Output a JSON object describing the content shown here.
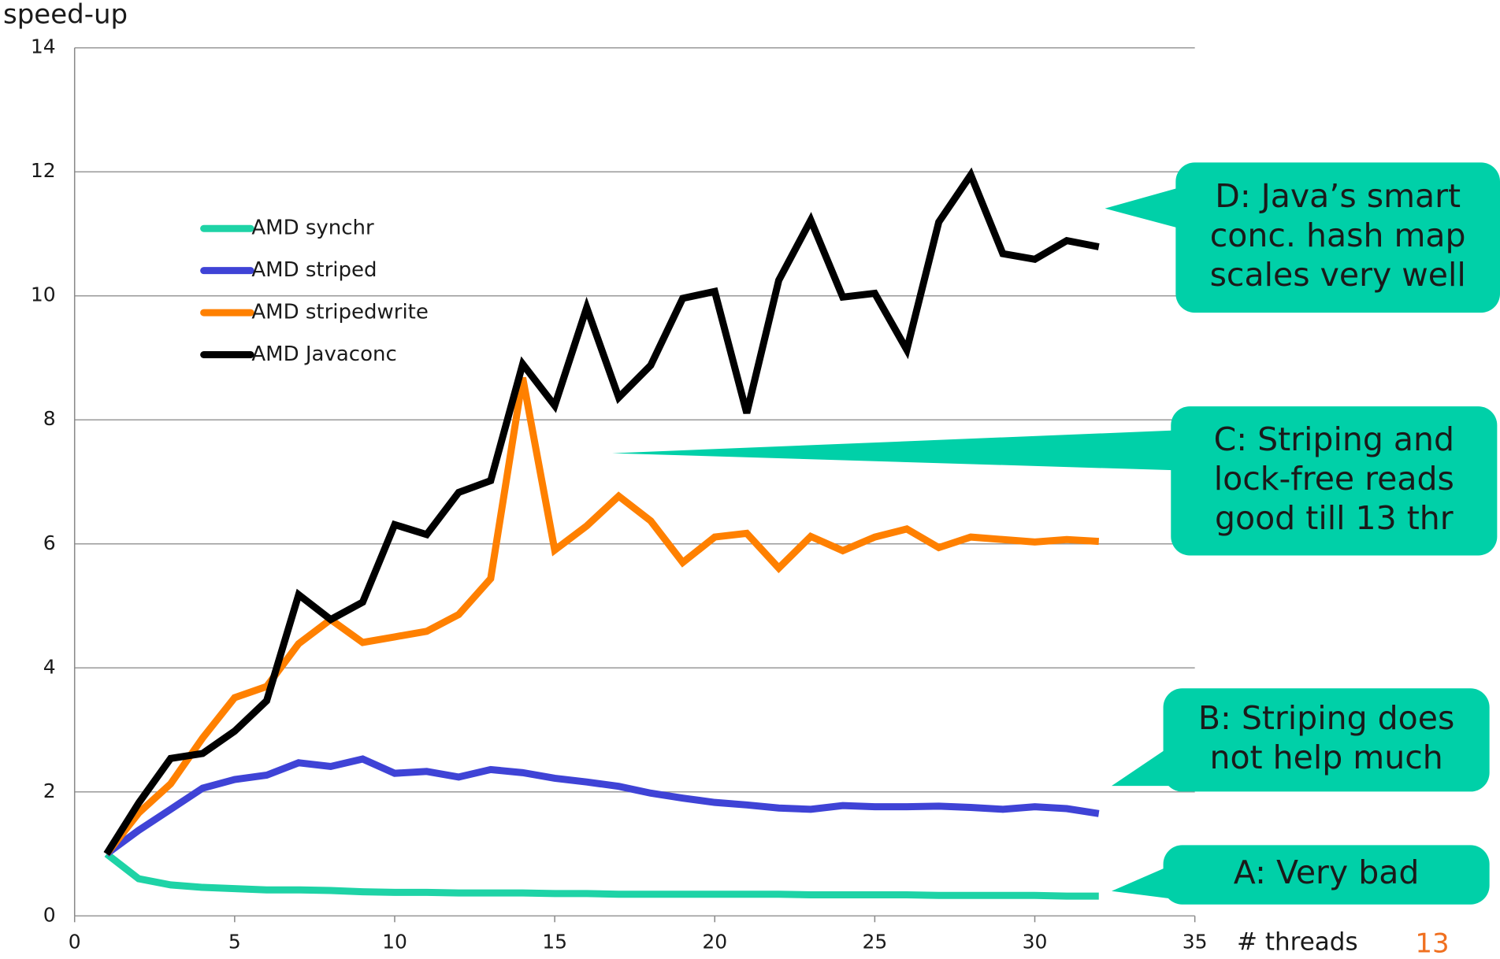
{
  "chart_data": {
    "type": "line",
    "ylabel": "speed-up",
    "xlabel": "# threads",
    "page_number": "13",
    "x": [
      1,
      2,
      3,
      4,
      5,
      6,
      7,
      8,
      9,
      10,
      11,
      12,
      13,
      14,
      15,
      16,
      17,
      18,
      19,
      20,
      21,
      22,
      23,
      24,
      25,
      26,
      27,
      28,
      29,
      30,
      31,
      32
    ],
    "xlim": [
      0,
      35
    ],
    "xticks": [
      0,
      5,
      10,
      15,
      20,
      25,
      30,
      35
    ],
    "ylim": [
      0,
      14
    ],
    "yticks": [
      0,
      2,
      4,
      6,
      8,
      10,
      12,
      14
    ],
    "grid": true,
    "legend": "upper left",
    "series": [
      {
        "name": "AMD synchr",
        "color": "#1ed3a6",
        "values": [
          1.0,
          0.6,
          0.5,
          0.46,
          0.44,
          0.42,
          0.42,
          0.41,
          0.39,
          0.38,
          0.38,
          0.37,
          0.37,
          0.37,
          0.36,
          0.36,
          0.35,
          0.35,
          0.35,
          0.35,
          0.35,
          0.35,
          0.34,
          0.34,
          0.34,
          0.34,
          0.33,
          0.33,
          0.33,
          0.33,
          0.32,
          0.32
        ]
      },
      {
        "name": "AMD striped",
        "color": "#3f43d6",
        "values": [
          1.0,
          1.38,
          1.72,
          2.06,
          2.2,
          2.27,
          2.47,
          2.41,
          2.53,
          2.3,
          2.33,
          2.24,
          2.36,
          2.31,
          2.22,
          2.16,
          2.09,
          1.98,
          1.9,
          1.83,
          1.79,
          1.74,
          1.72,
          1.78,
          1.76,
          1.76,
          1.77,
          1.75,
          1.72,
          1.76,
          1.73,
          1.65
        ]
      },
      {
        "name": "AMD stripedwrite",
        "color": "#ff8000",
        "values": [
          1.0,
          1.66,
          2.13,
          2.87,
          3.52,
          3.7,
          4.39,
          4.78,
          4.41,
          4.5,
          4.59,
          4.86,
          5.44,
          8.68,
          5.9,
          6.29,
          6.77,
          6.37,
          5.7,
          6.11,
          6.17,
          5.61,
          6.12,
          5.89,
          6.11,
          6.24,
          5.94,
          6.11,
          6.07,
          6.03,
          6.07,
          6.04
        ]
      },
      {
        "name": "AMD Javaconc",
        "color": "#000000",
        "values": [
          1.0,
          1.82,
          2.54,
          2.62,
          2.98,
          3.47,
          5.18,
          4.78,
          5.06,
          6.31,
          6.15,
          6.83,
          7.02,
          8.9,
          8.23,
          9.81,
          8.36,
          8.88,
          9.96,
          10.07,
          8.11,
          10.25,
          11.22,
          9.98,
          10.04,
          9.13,
          11.19,
          11.95,
          10.68,
          10.59,
          10.89,
          10.79
        ]
      }
    ],
    "annotation_color": "#00d0a8",
    "annotations": [
      {
        "lines": [
          "D: Java’s smart",
          "conc. hash map",
          "scales very well"
        ]
      },
      {
        "lines": [
          "C: Striping and",
          "lock-free reads",
          "good till 13 thr"
        ]
      },
      {
        "lines": [
          "B: Striping does",
          "not help much"
        ]
      },
      {
        "lines": [
          "A: Very bad"
        ]
      }
    ]
  }
}
